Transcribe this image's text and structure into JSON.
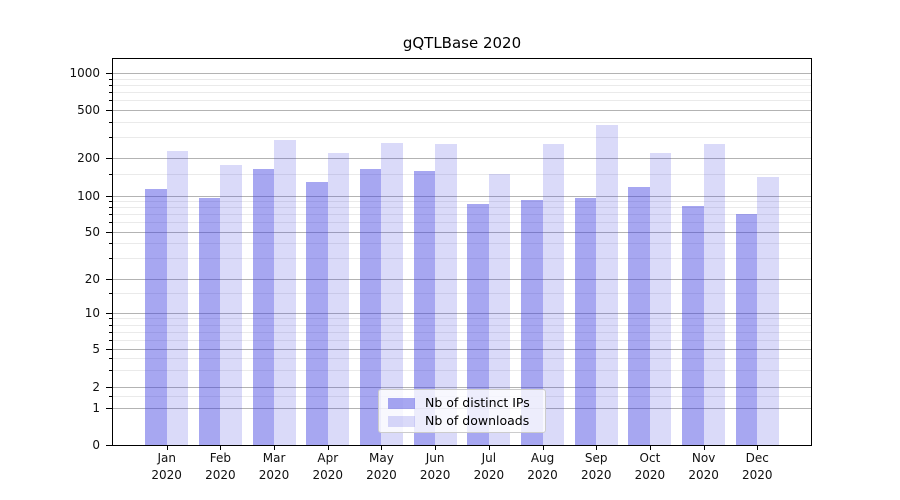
{
  "chart_data": {
    "type": "bar",
    "title": "gQTLBase 2020",
    "categories": [
      "Jan 2020",
      "Feb 2020",
      "Mar 2020",
      "Apr 2020",
      "May 2020",
      "Jun 2020",
      "Jul 2020",
      "Aug 2020",
      "Sep 2020",
      "Oct 2020",
      "Nov 2020",
      "Dec 2020"
    ],
    "series": [
      {
        "name": "Nb of distinct IPs",
        "color": "rgba(60,60,225,0.45)",
        "values": [
          112,
          95,
          162,
          128,
          164,
          158,
          85,
          91,
          96,
          118,
          82,
          70
        ]
      },
      {
        "name": "Nb of downloads",
        "color": "rgba(60,60,225,0.19)",
        "values": [
          228,
          175,
          280,
          220,
          267,
          262,
          149,
          262,
          372,
          218,
          262,
          141
        ]
      }
    ],
    "xlabel": "",
    "ylabel": "",
    "yscale": "symlog",
    "ylim": [
      0,
      1000
    ],
    "y_ticks": [
      0,
      1,
      2,
      5,
      10,
      20,
      50,
      100,
      200,
      500,
      1000
    ],
    "y_minor_ticks": [
      1.5,
      3,
      4,
      6,
      7,
      8,
      9,
      15,
      30,
      40,
      60,
      70,
      80,
      90,
      150,
      300,
      400,
      600,
      700,
      800,
      900
    ],
    "grid": "both",
    "legend_position": "lower center",
    "style": {
      "major_grid_color": "#b3b3b3",
      "minor_grid_color": "#eaeaea",
      "axis_color": "#000000",
      "text_color": "#111111"
    }
  }
}
